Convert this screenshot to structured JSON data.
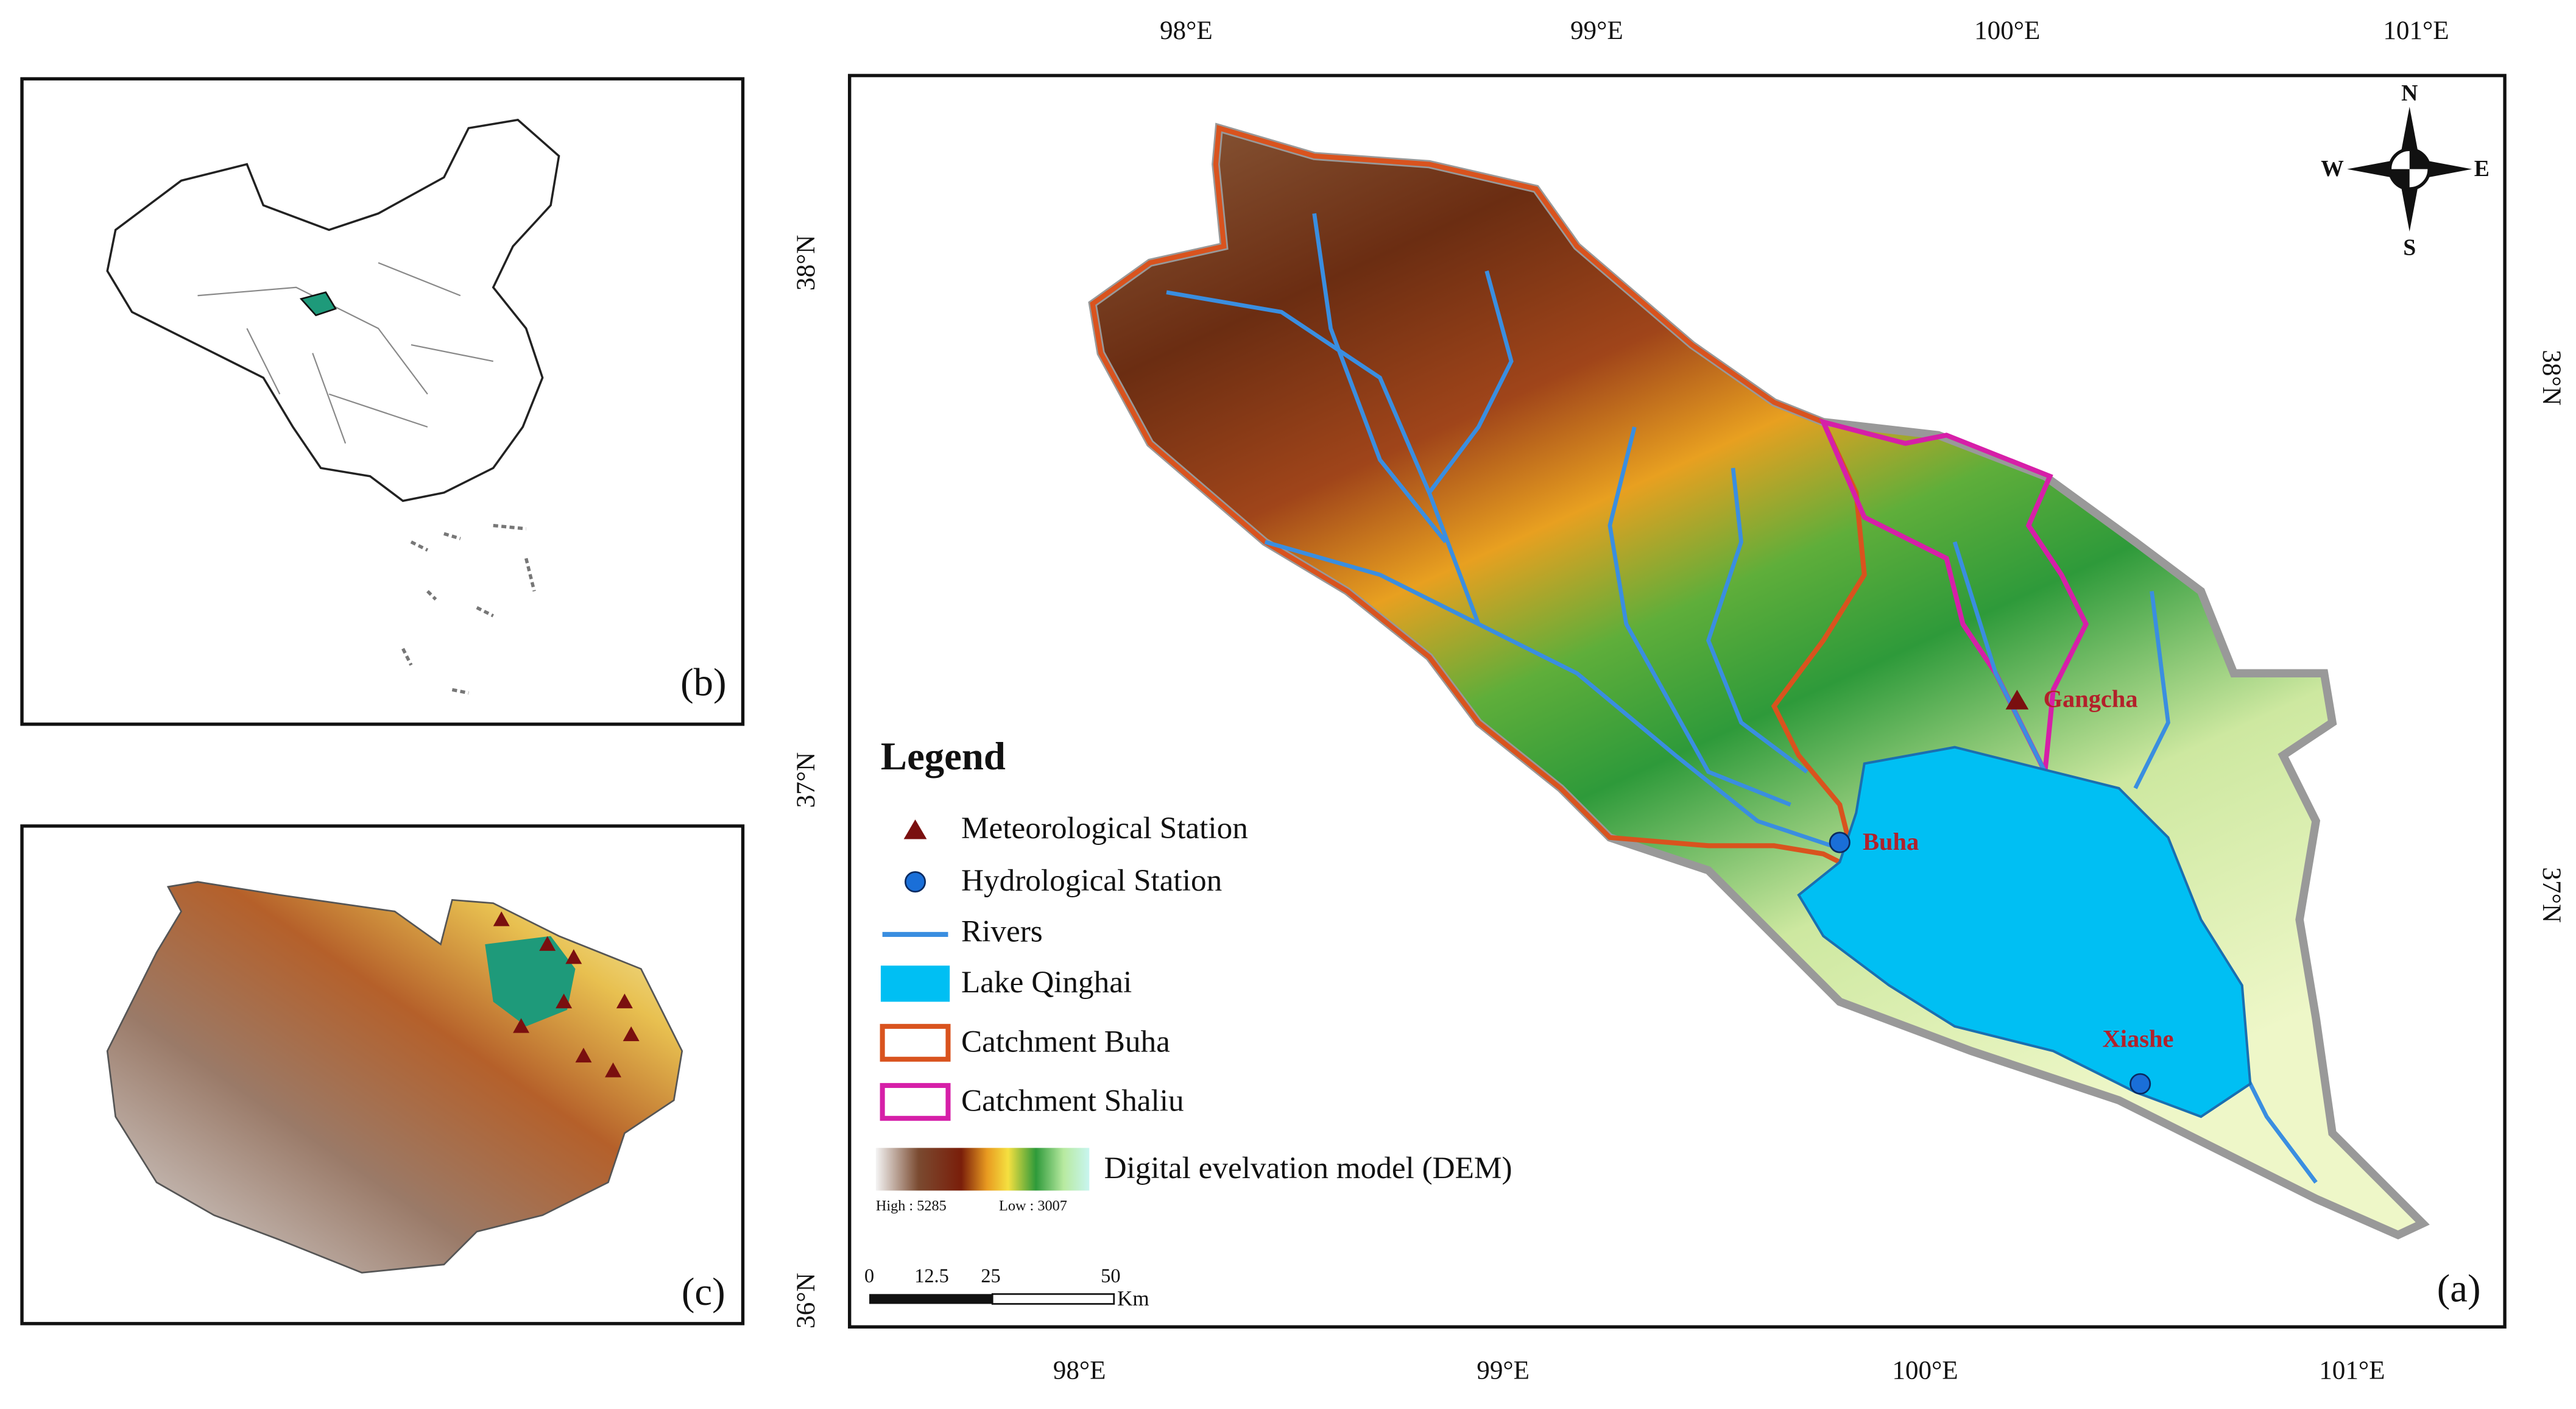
{
  "panel_a": {
    "label": "(a)",
    "top_longitudes": [
      "98°E",
      "99°E",
      "100°E",
      "101°E"
    ],
    "bottom_longitudes": [
      "98°E",
      "99°E",
      "100°E",
      "101°E"
    ],
    "left_latitudes": [
      "38°N",
      "37°N",
      "36°N"
    ],
    "right_latitudes": [
      "38°N",
      "37°N"
    ],
    "compass": {
      "n": "N",
      "s": "S",
      "w": "W",
      "e": "E"
    },
    "stations": [
      "Gangcha",
      "Buha",
      "Xiashe"
    ],
    "legend": {
      "title": "Legend",
      "items": [
        "Meteorological Station",
        "Hydrological Station",
        "Rivers",
        "Lake Qinghai",
        "Catchment Buha",
        "Catchment Shaliu"
      ],
      "dem": {
        "label": "Digital evelvation model (DEM)",
        "high": "High : 5285",
        "low": "Low : 3007"
      }
    },
    "scale_bar": {
      "ticks": [
        "0",
        "12.5",
        "25",
        "50"
      ],
      "unit": "Km"
    }
  },
  "panel_b": {
    "label": "(b)"
  },
  "panel_c": {
    "label": "(c)"
  }
}
